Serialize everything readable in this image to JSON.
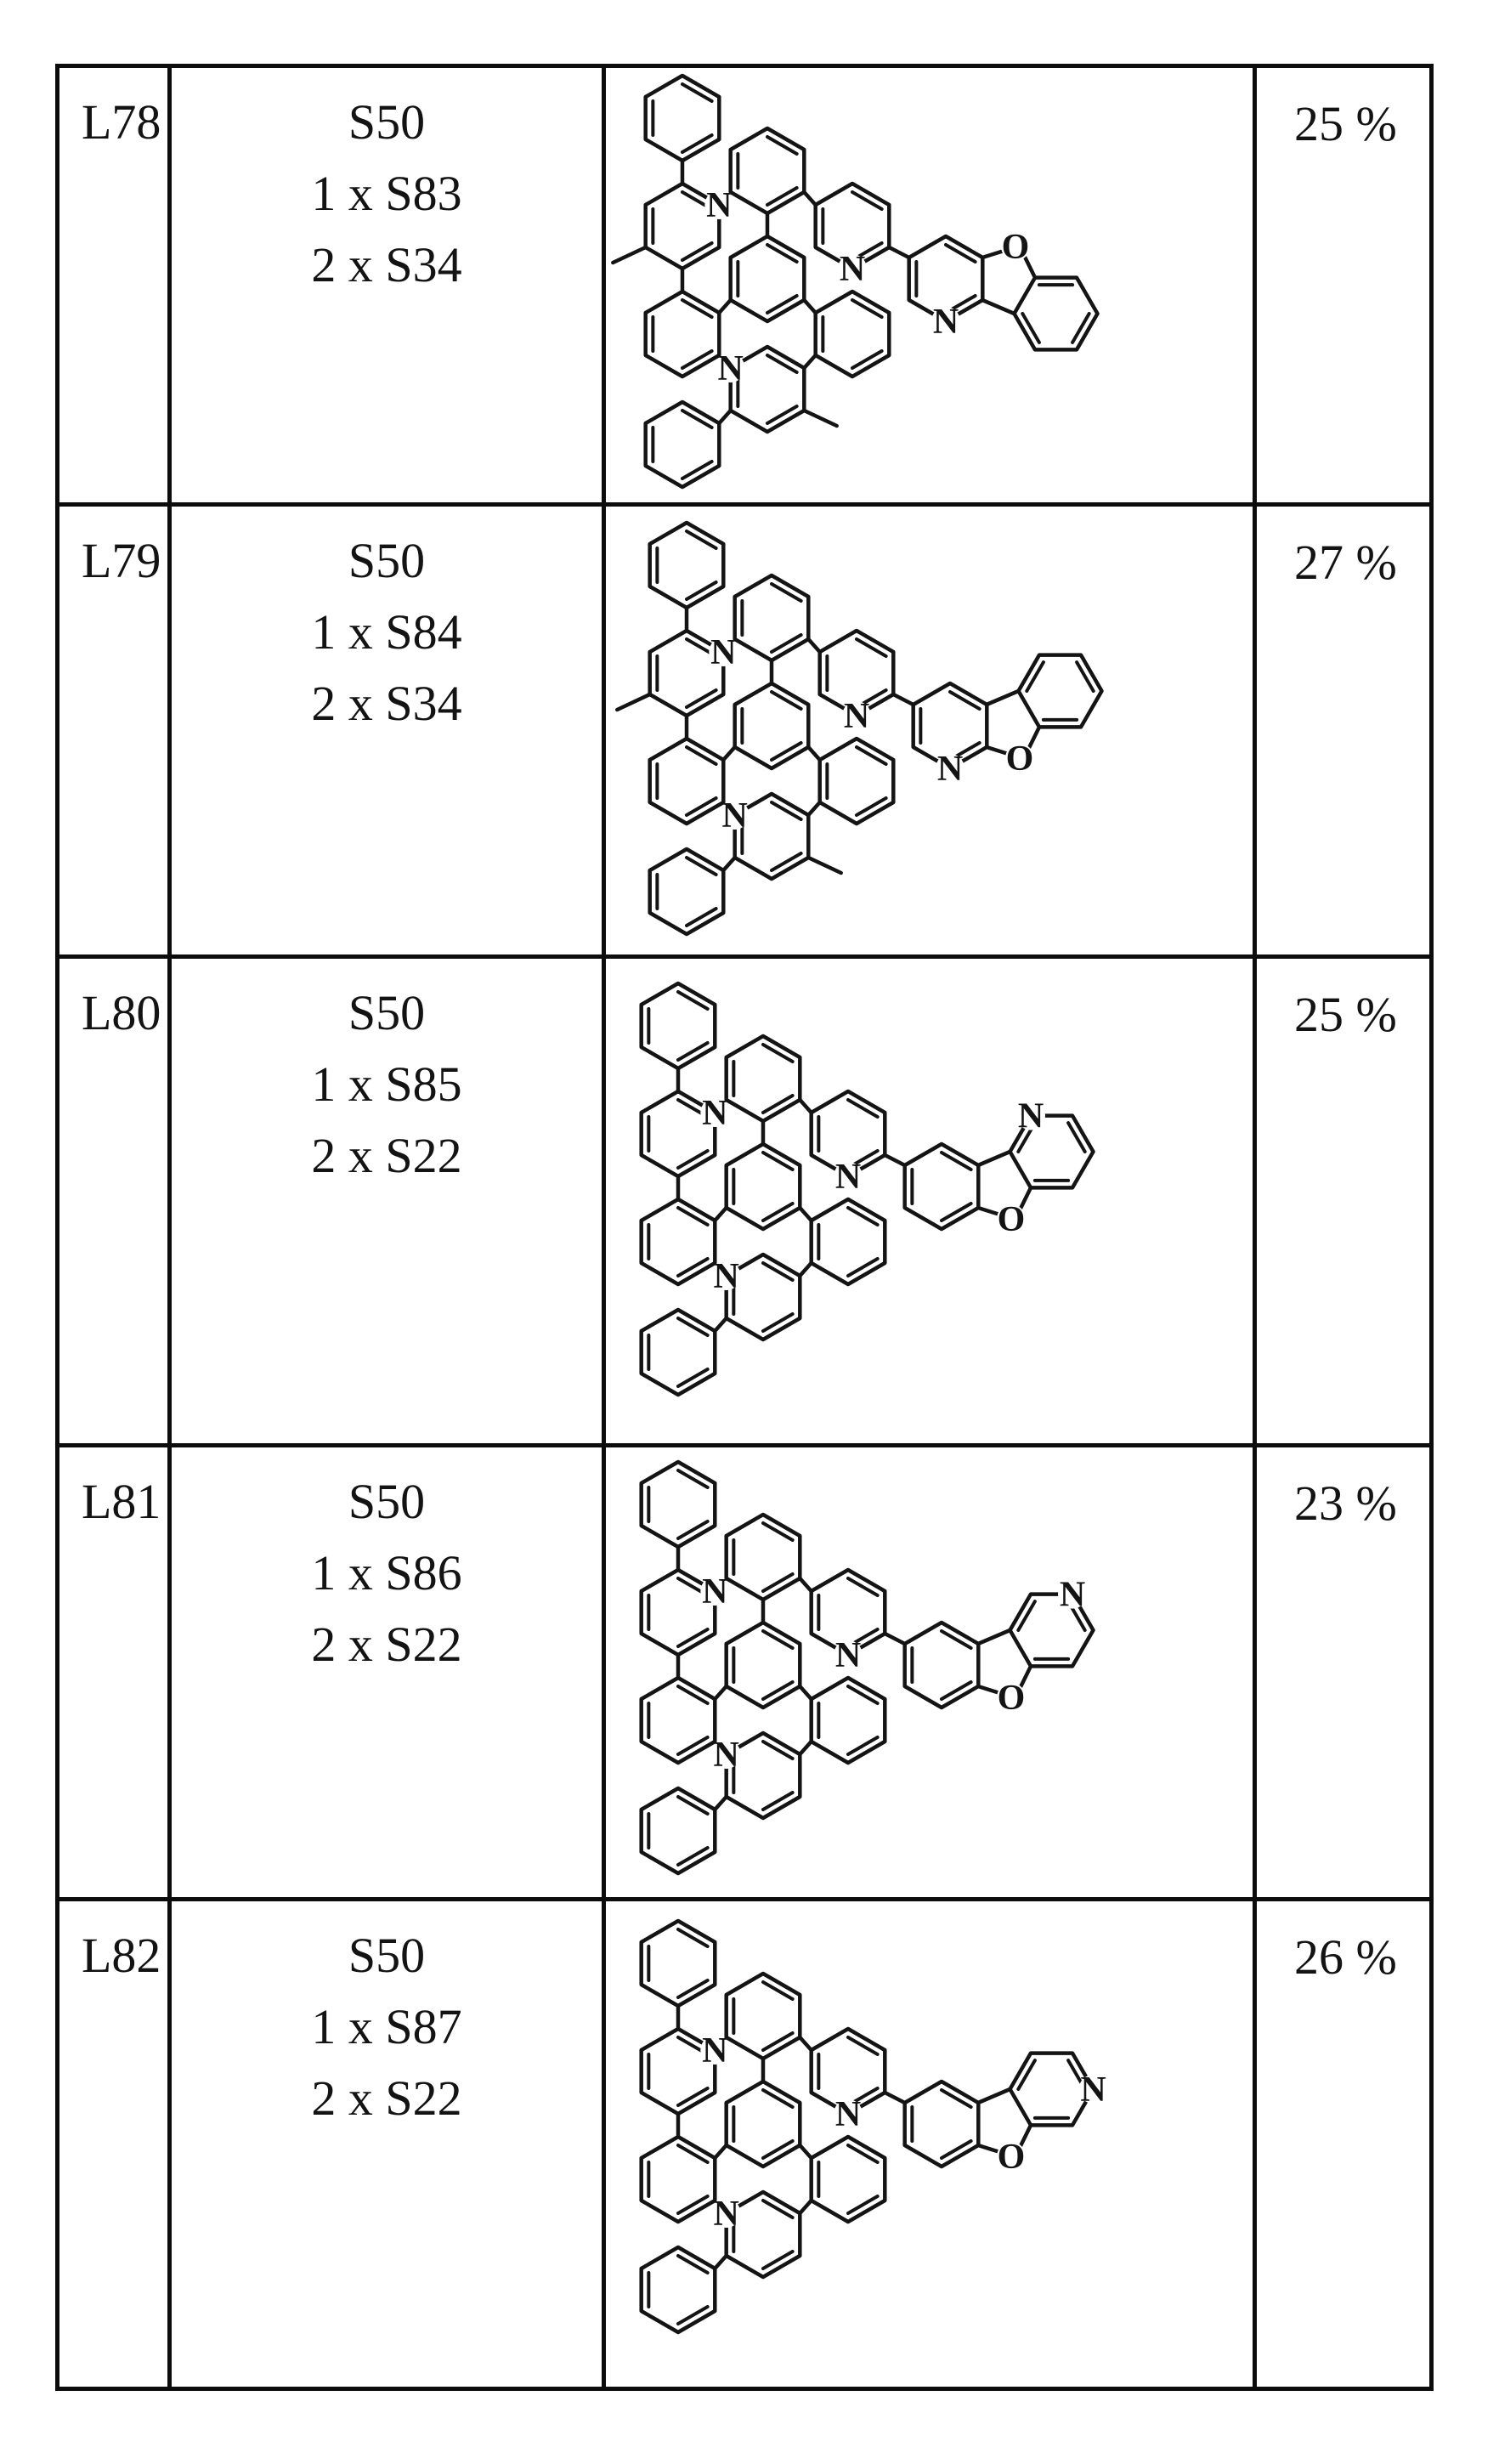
{
  "page": {
    "background": "#ffffff",
    "ink": "#131313",
    "line_color": "#141414"
  },
  "table": {
    "row_heights_inner": [
      511,
      527,
      570,
      529,
      571
    ],
    "columns": [
      "ligand-id",
      "reagents",
      "structure",
      "yield"
    ]
  },
  "rows": [
    {
      "label": "L78",
      "reagents": [
        "S50",
        "1 x S83",
        "2 x S34"
      ],
      "yield": "25 %",
      "structure": {
        "center": [
          190,
          248
        ],
        "methyl": true,
        "acceptor": "o-top",
        "acceptor_n": [
          0,
          50
        ]
      }
    },
    {
      "label": "L79",
      "reagents": [
        "S50",
        "1 x S84",
        "2 x S34"
      ],
      "yield": "27 %",
      "structure": {
        "center": [
          195,
          258
        ],
        "methyl": true,
        "acceptor": "o-bottom",
        "acceptor_n": [
          0,
          50
        ]
      }
    },
    {
      "label": "L80",
      "reagents": [
        "S50",
        "1 x S85",
        "2 x S22"
      ],
      "yield": "25 %",
      "structure": {
        "center": [
          185,
          268
        ],
        "methyl": false,
        "acceptor": "o-bottom",
        "acceptor_n": [
          105,
          -83.4
        ]
      }
    },
    {
      "label": "L81",
      "reagents": [
        "S50",
        "1 x S86",
        "2 x S22"
      ],
      "yield": "23 %",
      "structure": {
        "center": [
          185,
          256
        ],
        "methyl": false,
        "acceptor": "o-bottom",
        "acceptor_n": [
          154,
          -83.4
        ]
      }
    },
    {
      "label": "L82",
      "reagents": [
        "S50",
        "1 x S87",
        "2 x S22"
      ],
      "yield": "26 %",
      "structure": {
        "center": [
          185,
          262
        ],
        "methyl": false,
        "acceptor": "o-bottom",
        "acceptor_n": [
          178.5,
          -41
        ]
      }
    }
  ],
  "scaffold": {
    "hex_r": 50,
    "stroke_w": 4.5,
    "rings": {
      "P1": [
        -100,
        -189
      ],
      "Py1": [
        -100,
        -62
      ],
      "P2": [
        -100,
        65
      ],
      "P3": [
        0,
        -127
      ],
      "C": [
        0,
        0
      ],
      "Py2": [
        100,
        -62
      ],
      "P4": [
        100,
        65
      ],
      "Py3": [
        0,
        130
      ],
      "P5": [
        -100,
        195
      ],
      "A1": [
        210,
        0
      ]
    },
    "bonds": [
      [
        "P1",
        3,
        "Py1",
        0
      ],
      [
        "Py1",
        3,
        "P2",
        0
      ],
      [
        "P2",
        1,
        "C",
        4
      ],
      [
        "P3",
        3,
        "C",
        0
      ],
      [
        "P3",
        2,
        "Py2",
        5
      ],
      [
        "Py2",
        2,
        "A1",
        5
      ],
      [
        "C",
        2,
        "P4",
        5
      ],
      [
        "P4",
        4,
        "Py3",
        1
      ],
      [
        "Py3",
        4,
        "P5",
        1
      ]
    ],
    "n_labels": [
      [
        "Py1",
        1
      ],
      [
        "Py2",
        3
      ],
      [
        "Py3",
        5
      ]
    ],
    "methyl_stubs": [
      [
        "Py1",
        4,
        [
          -32,
          15
        ]
      ],
      [
        "Py3",
        2,
        [
          32,
          15
        ]
      ]
    ],
    "acceptors": {
      "o-top": {
        "a3_poly": [
          [
            80.5,
            41
          ],
          [
            105,
            -1.4
          ],
          [
            154,
            -1.4
          ],
          [
            178.5,
            41
          ],
          [
            154,
            83.4
          ],
          [
            105,
            83.4
          ]
        ],
        "a3_double_edges": [
          1,
          3,
          5
        ],
        "extra_bonds": [
          [
            [
              43,
              -25
            ],
            [
              78,
              -36
            ]
          ],
          [
            [
              86,
              -40
            ],
            [
              105,
              -1.4
            ]
          ],
          [
            [
              80.5,
              41
            ],
            [
              43,
              25
            ]
          ]
        ],
        "o_label": [
          82,
          -38
        ]
      },
      "o-bottom": {
        "a3_poly": [
          [
            80.5,
            -41
          ],
          [
            105,
            1.4
          ],
          [
            154,
            1.4
          ],
          [
            178.5,
            -41
          ],
          [
            154,
            -83.4
          ],
          [
            105,
            -83.4
          ]
        ],
        "a3_double_edges": [
          1,
          3,
          5
        ],
        "extra_bonds": [
          [
            [
              43,
              25
            ],
            [
              78,
              36
            ]
          ],
          [
            [
              86,
              40
            ],
            [
              105,
              1.4
            ]
          ],
          [
            [
              80.5,
              -41
            ],
            [
              43,
              -25
            ]
          ]
        ],
        "o_label": [
          82,
          38
        ]
      }
    }
  }
}
